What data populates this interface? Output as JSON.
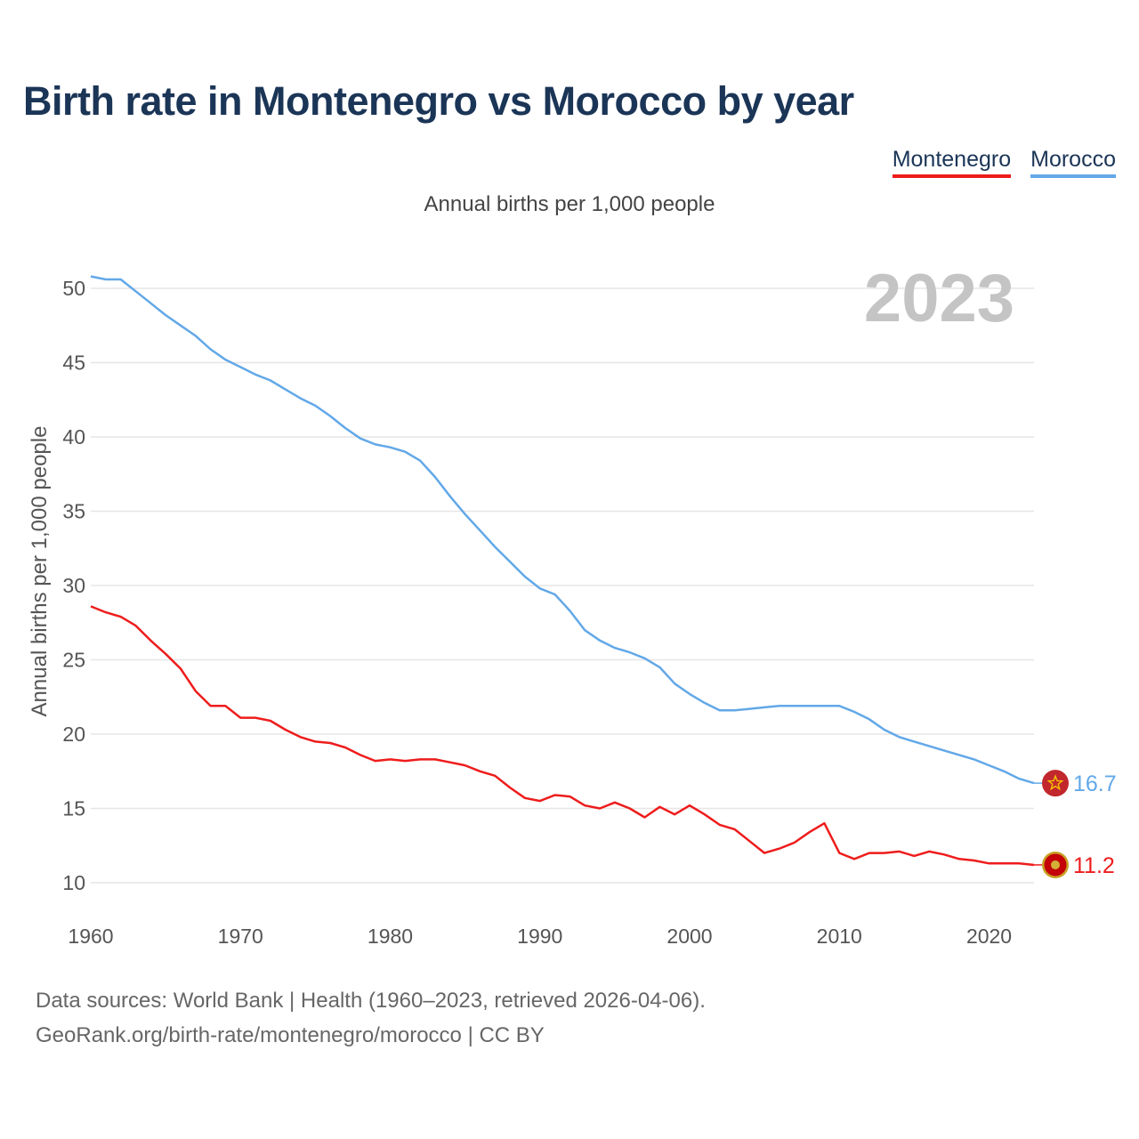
{
  "title": "Birth rate in Montenegro vs Morocco by year",
  "legend": {
    "montenegro": "Montenegro",
    "morocco": "Morocco"
  },
  "subtitle": "Annual births per 1,000 people",
  "year_watermark": "2023",
  "footer": {
    "line1": "Data sources: World Bank | Health (1960–2023, retrieved 2026-04-06).",
    "line2": "GeoRank.org/birth-rate/montenegro/morocco | CC BY"
  },
  "chart_data": {
    "type": "line",
    "title": "Birth rate in Montenegro vs Morocco by year",
    "ylabel": "Annual births per 1,000 people",
    "xlabel": "",
    "xlim": [
      1960,
      2023
    ],
    "ylim": [
      8,
      52
    ],
    "yticks": [
      10,
      15,
      20,
      25,
      30,
      35,
      40,
      45,
      50
    ],
    "xticks": [
      1960,
      1970,
      1980,
      1990,
      2000,
      2010,
      2020
    ],
    "grid": true,
    "legend_position": "top-right",
    "x": [
      1960,
      1961,
      1962,
      1963,
      1964,
      1965,
      1966,
      1967,
      1968,
      1969,
      1970,
      1971,
      1972,
      1973,
      1974,
      1975,
      1976,
      1977,
      1978,
      1979,
      1980,
      1981,
      1982,
      1983,
      1984,
      1985,
      1986,
      1987,
      1988,
      1989,
      1990,
      1991,
      1992,
      1993,
      1994,
      1995,
      1996,
      1997,
      1998,
      1999,
      2000,
      2001,
      2002,
      2003,
      2004,
      2005,
      2006,
      2007,
      2008,
      2009,
      2010,
      2011,
      2012,
      2013,
      2014,
      2015,
      2016,
      2017,
      2018,
      2019,
      2020,
      2021,
      2022,
      2023
    ],
    "series": [
      {
        "name": "Morocco",
        "color": "#62a8e8",
        "end_label": "16.7",
        "values": [
          50.8,
          50.6,
          50.6,
          49.8,
          49.0,
          48.2,
          47.5,
          46.8,
          45.9,
          45.2,
          44.7,
          44.2,
          43.8,
          43.2,
          42.6,
          42.1,
          41.4,
          40.6,
          39.9,
          39.5,
          39.3,
          39.0,
          38.4,
          37.3,
          36.0,
          34.8,
          33.7,
          32.6,
          31.6,
          30.6,
          29.8,
          29.4,
          28.3,
          27.0,
          26.3,
          25.8,
          25.5,
          25.1,
          24.5,
          23.4,
          22.7,
          22.1,
          21.6,
          21.6,
          21.7,
          21.8,
          21.9,
          21.9,
          21.9,
          21.9,
          21.9,
          21.5,
          21.0,
          20.3,
          19.8,
          19.5,
          19.2,
          18.9,
          18.6,
          18.3,
          17.9,
          17.5,
          17.0,
          16.7
        ]
      },
      {
        "name": "Montenegro",
        "color": "#ee1c1c",
        "end_label": "11.2",
        "values": [
          28.6,
          28.2,
          27.9,
          27.3,
          26.3,
          25.4,
          24.4,
          22.9,
          21.9,
          21.9,
          21.1,
          21.1,
          20.9,
          20.3,
          19.8,
          19.5,
          19.4,
          19.1,
          18.6,
          18.2,
          18.3,
          18.2,
          18.3,
          18.3,
          18.1,
          17.9,
          17.5,
          17.2,
          16.4,
          15.7,
          15.5,
          15.9,
          15.8,
          15.2,
          15.0,
          15.4,
          15.0,
          14.4,
          15.1,
          14.6,
          15.2,
          14.6,
          13.9,
          13.6,
          12.8,
          12.0,
          12.3,
          12.7,
          13.4,
          14.0,
          12.0,
          11.6,
          12.0,
          12.0,
          12.1,
          11.8,
          12.1,
          11.9,
          11.6,
          11.5,
          11.3,
          11.3,
          11.3,
          11.2
        ]
      }
    ]
  }
}
